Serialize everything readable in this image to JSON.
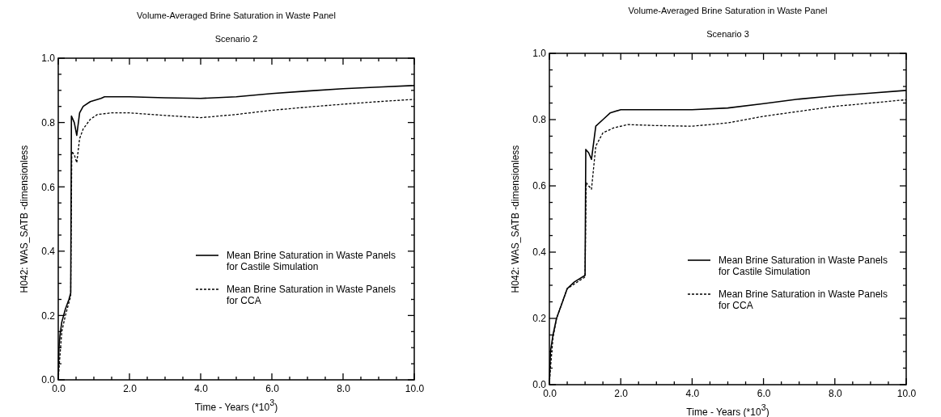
{
  "chart_data": [
    {
      "type": "line",
      "title": "Volume-Averaged Brine Saturation in Waste Panel",
      "subtitle": "Scenario 2",
      "xlabel": "Time - Years   (*10$^{3}$)",
      "ylabel": "H042:  WAS_SATB -dimensionless",
      "xlim": [
        0,
        10
      ],
      "ylim": [
        0,
        1
      ],
      "xticks": [
        {
          "value": 0,
          "label": "0.0"
        },
        {
          "value": 0.5,
          "label": null
        },
        {
          "value": 1,
          "label": null
        },
        {
          "value": 1.5,
          "label": null
        },
        {
          "value": 2,
          "label": "2.0"
        },
        {
          "value": 2.5,
          "label": null
        },
        {
          "value": 3,
          "label": null
        },
        {
          "value": 3.5,
          "label": null
        },
        {
          "value": 4,
          "label": "4.0"
        },
        {
          "value": 4.5,
          "label": null
        },
        {
          "value": 5,
          "label": null
        },
        {
          "value": 5.5,
          "label": null
        },
        {
          "value": 6,
          "label": "6.0"
        },
        {
          "value": 6.5,
          "label": null
        },
        {
          "value": 7,
          "label": null
        },
        {
          "value": 7.5,
          "label": null
        },
        {
          "value": 8,
          "label": "8.0"
        },
        {
          "value": 8.5,
          "label": null
        },
        {
          "value": 9,
          "label": null
        },
        {
          "value": 9.5,
          "label": null
        },
        {
          "value": 10,
          "label": "10.0"
        }
      ],
      "yticks": [
        {
          "value": 0,
          "label": "0.0"
        },
        {
          "value": 0.05,
          "label": null
        },
        {
          "value": 0.1,
          "label": null
        },
        {
          "value": 0.15,
          "label": null
        },
        {
          "value": 0.2,
          "label": "0.2"
        },
        {
          "value": 0.25,
          "label": null
        },
        {
          "value": 0.3,
          "label": null
        },
        {
          "value": 0.35,
          "label": null
        },
        {
          "value": 0.4,
          "label": "0.4"
        },
        {
          "value": 0.45,
          "label": null
        },
        {
          "value": 0.5,
          "label": null
        },
        {
          "value": 0.55,
          "label": null
        },
        {
          "value": 0.6,
          "label": "0.6"
        },
        {
          "value": 0.65,
          "label": null
        },
        {
          "value": 0.7,
          "label": null
        },
        {
          "value": 0.75,
          "label": null
        },
        {
          "value": 0.8,
          "label": "0.8"
        },
        {
          "value": 0.85,
          "label": null
        },
        {
          "value": 0.9,
          "label": null
        },
        {
          "value": 0.95,
          "label": null
        },
        {
          "value": 1,
          "label": "1.0"
        }
      ],
      "legend": "bottom right",
      "marker": "none",
      "series": [
        {
          "name": "Mean Brine Saturation in Waste Panels\nfor Castile Simulation",
          "color": "#000000",
          "line_style": "solid",
          "x": [
            0,
            0.02,
            0.05,
            0.1,
            0.2,
            0.3,
            0.35,
            0.37,
            0.45,
            0.52,
            0.6,
            0.7,
            0.9,
            1.2,
            1.3,
            2,
            3,
            4,
            5,
            6,
            7,
            8,
            9,
            10
          ],
          "values": [
            0,
            0.1,
            0.14,
            0.18,
            0.22,
            0.25,
            0.27,
            0.82,
            0.8,
            0.76,
            0.83,
            0.85,
            0.865,
            0.875,
            0.88,
            0.88,
            0.877,
            0.875,
            0.88,
            0.89,
            0.898,
            0.905,
            0.91,
            0.915
          ]
        },
        {
          "name": "Mean Brine Saturation in Waste Panels\nfor CCA",
          "color": "#000000",
          "line_style": "dashed",
          "x": [
            0,
            0.03,
            0.1,
            0.2,
            0.35,
            0.38,
            0.45,
            0.52,
            0.6,
            0.7,
            0.9,
            1.1,
            1.5,
            2,
            3,
            4,
            5,
            6,
            7,
            8,
            9,
            10
          ],
          "values": [
            0,
            0.05,
            0.15,
            0.2,
            0.26,
            0.71,
            0.7,
            0.675,
            0.75,
            0.78,
            0.81,
            0.825,
            0.83,
            0.83,
            0.822,
            0.815,
            0.825,
            0.838,
            0.848,
            0.857,
            0.865,
            0.872
          ]
        }
      ]
    },
    {
      "type": "line",
      "title": "Volume-Averaged Brine Saturation in Waste Panel",
      "subtitle": "Scenario 3",
      "xlabel": "Time - Years   (*10$^{3}$)",
      "ylabel": "H042:  WAS_SATB -dimensionless",
      "xlim": [
        0,
        10
      ],
      "ylim": [
        0,
        1
      ],
      "xticks": [
        {
          "value": 0,
          "label": "0.0"
        },
        {
          "value": 0.5,
          "label": null
        },
        {
          "value": 1,
          "label": null
        },
        {
          "value": 1.5,
          "label": null
        },
        {
          "value": 2,
          "label": "2.0"
        },
        {
          "value": 2.5,
          "label": null
        },
        {
          "value": 3,
          "label": null
        },
        {
          "value": 3.5,
          "label": null
        },
        {
          "value": 4,
          "label": "4.0"
        },
        {
          "value": 4.5,
          "label": null
        },
        {
          "value": 5,
          "label": null
        },
        {
          "value": 5.5,
          "label": null
        },
        {
          "value": 6,
          "label": "6.0"
        },
        {
          "value": 6.5,
          "label": null
        },
        {
          "value": 7,
          "label": null
        },
        {
          "value": 7.5,
          "label": null
        },
        {
          "value": 8,
          "label": "8.0"
        },
        {
          "value": 8.5,
          "label": null
        },
        {
          "value": 9,
          "label": null
        },
        {
          "value": 9.5,
          "label": null
        },
        {
          "value": 10,
          "label": "10.0"
        }
      ],
      "yticks": [
        {
          "value": 0,
          "label": "0.0"
        },
        {
          "value": 0.05,
          "label": null
        },
        {
          "value": 0.1,
          "label": null
        },
        {
          "value": 0.15,
          "label": null
        },
        {
          "value": 0.2,
          "label": "0.2"
        },
        {
          "value": 0.25,
          "label": null
        },
        {
          "value": 0.3,
          "label": null
        },
        {
          "value": 0.35,
          "label": null
        },
        {
          "value": 0.4,
          "label": "0.4"
        },
        {
          "value": 0.45,
          "label": null
        },
        {
          "value": 0.5,
          "label": null
        },
        {
          "value": 0.55,
          "label": null
        },
        {
          "value": 0.6,
          "label": "0.6"
        },
        {
          "value": 0.65,
          "label": null
        },
        {
          "value": 0.7,
          "label": null
        },
        {
          "value": 0.75,
          "label": null
        },
        {
          "value": 0.8,
          "label": "0.8"
        },
        {
          "value": 0.85,
          "label": null
        },
        {
          "value": 0.9,
          "label": null
        },
        {
          "value": 0.95,
          "label": null
        },
        {
          "value": 1,
          "label": "1.0"
        }
      ],
      "legend": "bottom right",
      "marker": "none",
      "series": [
        {
          "name": "Mean Brine Saturation in Waste Panels\nfor Castile Simulation",
          "color": "#000000",
          "line_style": "solid",
          "x": [
            0,
            0.03,
            0.1,
            0.2,
            0.4,
            0.5,
            0.7,
            1,
            1.02,
            1.1,
            1.18,
            1.3,
            1.5,
            1.7,
            2,
            3,
            4,
            5,
            6,
            7,
            8,
            9,
            10
          ],
          "values": [
            0,
            0.1,
            0.15,
            0.2,
            0.26,
            0.29,
            0.31,
            0.33,
            0.71,
            0.7,
            0.68,
            0.78,
            0.8,
            0.82,
            0.83,
            0.83,
            0.83,
            0.835,
            0.848,
            0.862,
            0.872,
            0.88,
            0.888
          ]
        },
        {
          "name": "Mean Brine Saturation in Waste Panels\nfor CCA",
          "color": "#000000",
          "line_style": "dashed",
          "x": [
            0,
            0.03,
            0.1,
            0.2,
            0.5,
            1,
            1.03,
            1.1,
            1.18,
            1.3,
            1.5,
            1.8,
            2.2,
            3,
            4,
            5,
            6,
            7,
            8,
            9,
            10
          ],
          "values": [
            0,
            0.05,
            0.14,
            0.2,
            0.29,
            0.325,
            0.61,
            0.6,
            0.59,
            0.72,
            0.76,
            0.775,
            0.785,
            0.782,
            0.78,
            0.79,
            0.81,
            0.825,
            0.84,
            0.85,
            0.86
          ]
        }
      ]
    }
  ]
}
